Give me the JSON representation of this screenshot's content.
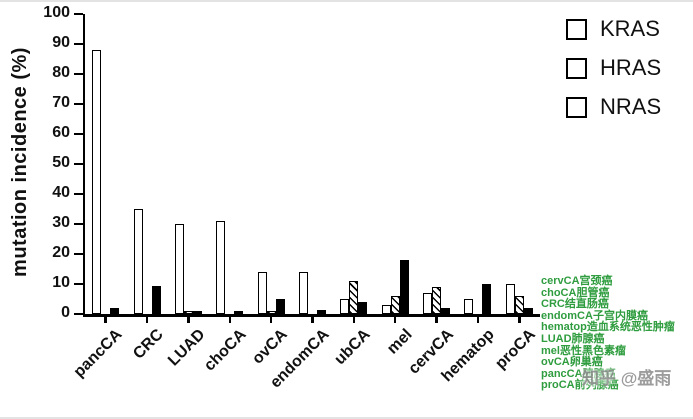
{
  "watermark": "知乎 @盛雨",
  "chart_data": {
    "type": "bar",
    "title": "",
    "xlabel": "",
    "ylabel": "mutation incidence (%)",
    "ylim": [
      0,
      100
    ],
    "ytick_step": 10,
    "grid": false,
    "legend_position": "top-right",
    "categories": [
      "pancCA",
      "CRC",
      "LUAD",
      "choCA",
      "ovCA",
      "endomCA",
      "ubCA",
      "mel",
      "cervCA",
      "hematop",
      "proCA"
    ],
    "series": [
      {
        "name": "KRAS",
        "style": "open",
        "values": [
          88,
          35,
          30,
          31,
          14,
          14,
          5,
          3,
          7,
          5,
          10
        ]
      },
      {
        "name": "HRAS",
        "style": "hatched",
        "values": [
          0,
          0,
          1,
          0,
          1,
          0,
          11,
          6,
          9,
          0,
          6
        ]
      },
      {
        "name": "NRAS",
        "style": "solid",
        "values": [
          2,
          9.5,
          1,
          1,
          5,
          1.5,
          4,
          18,
          2,
          10,
          2
        ]
      }
    ]
  },
  "annotations": {
    "color": "#2f9d3f",
    "lines": [
      "cervCA宫颈癌",
      "choCA胆管癌",
      "CRC结直肠癌",
      "endomCA子宫内膜癌",
      "hematop造血系统恶性肿瘤",
      "LUAD肺腺癌",
      "mel恶性黑色素瘤",
      "ovCA卵巢癌",
      "pancCA胰腺癌",
      "proCA前列腺癌"
    ]
  }
}
